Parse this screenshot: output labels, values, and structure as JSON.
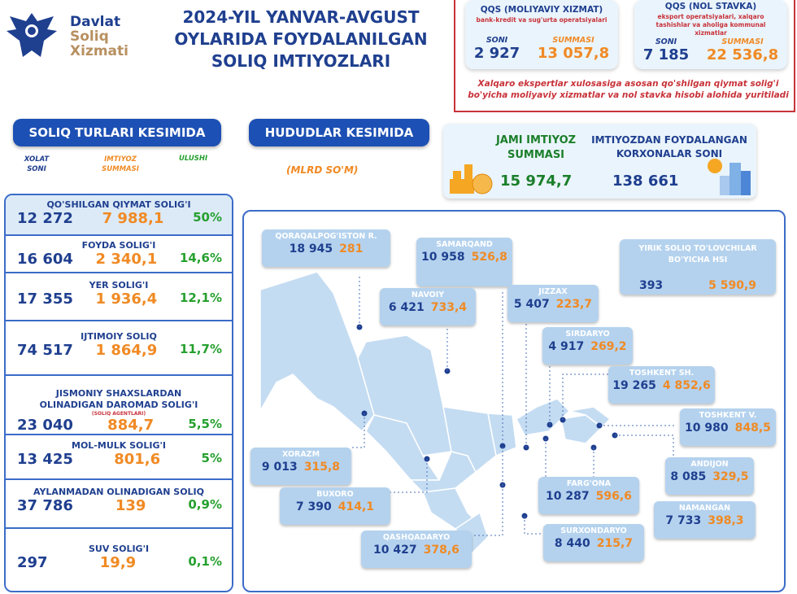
{
  "logo": {
    "line1": "Davlat",
    "line2": "Soliq",
    "line3": "Xizmati"
  },
  "title": "2024-YIL YANVAR-AVGUST OYLARIDA FOYDALANILGAN SOLIQ IMTIYOZLARI",
  "qqs_moliyaviy": {
    "title": "QQS (MOLIYAVIY XIZMAT)",
    "subtitle": "bank-kredit va sug'urta operatsiyalari",
    "soni_label": "SONI",
    "summasi_label": "SUMMASI",
    "soni": "2 927",
    "summasi": "13 057,8"
  },
  "qqs_nol": {
    "title": "QQS (NOL STAVKA)",
    "subtitle": "eksport operatsiyalari, xalqaro tashishlar va aholiga kommunal xizmatlar",
    "soni_label": "SONI",
    "summasi_label": "SUMMASI",
    "soni": "7 185",
    "summasi": "22 536,8"
  },
  "note": "Xalqaro ekspertlar xulosasiga asosan qo'shilgan qiymat solig'i bo'yicha moliyaviy xizmatlar va nol stavka hisobi alohida yuritiladi",
  "section_taxes": "SOLIQ TURLARI KESIMIDA",
  "section_regions": "HUDUDLAR KESIMIDA",
  "unit": "(MLRD SO'M)",
  "col_headers": {
    "count": "XOLAT SONI",
    "sum": "IMTIYOZ SUMMASI",
    "share": "ULUSHI"
  },
  "totals": {
    "sum_label": "JAMI IMTIYOZ SUMMASI",
    "sum": "15 974,7",
    "count_label": "IMTIYOZDAN FOYDALANGAN KORXONALAR SONI",
    "count": "138 661"
  },
  "taxes": [
    {
      "name": "QO'SHILGAN QIYMAT SOLIG'I",
      "count": "12 272",
      "sum": "7 988,1",
      "share": "50%"
    },
    {
      "name": "FOYDA SOLIG'I",
      "count": "16 604",
      "sum": "2 340,1",
      "share": "14,6%"
    },
    {
      "name": "YER SOLIG'I",
      "count": "17 355",
      "sum": "1 936,4",
      "share": "12,1%"
    },
    {
      "name": "IJTIMOIY SOLIQ",
      "count": "74 517",
      "sum": "1 864,9",
      "share": "11,7%"
    },
    {
      "name": "JISMONIY SHAXSLARDAN OLINADIGAN DAROMAD SOLIG'I",
      "note": "(SOLIQ AGENTLARI)",
      "count": "23 040",
      "sum": "884,7",
      "share": "5,5%"
    },
    {
      "name": "MOL-MULK SOLIG'I",
      "count": "13 425",
      "sum": "801,6",
      "share": "5%"
    },
    {
      "name": "AYLANMADAN OLINADIGAN SOLIQ",
      "count": "37 786",
      "sum": "139",
      "share": "0,9%"
    },
    {
      "name": "SUV SOLIG'I",
      "count": "297",
      "sum": "19,9",
      "share": "0,1%"
    }
  ],
  "regions": [
    {
      "name": "QORAQALPOG'ISTON R.",
      "count": "18 945",
      "sum": "281"
    },
    {
      "name": "SAMARQAND",
      "count": "10 958",
      "sum": "526,8"
    },
    {
      "name": "NAVOIY",
      "count": "6 421",
      "sum": "733,4"
    },
    {
      "name": "JIZZAX",
      "count": "5 407",
      "sum": "223,7"
    },
    {
      "name": "SIRDARYO",
      "count": "4 917",
      "sum": "269,2"
    },
    {
      "name": "TOSHKENT SH.",
      "count": "19 265",
      "sum": "4 852,6"
    },
    {
      "name": "TOSHKENT V.",
      "count": "10 980",
      "sum": "848,5"
    },
    {
      "name": "XORAZM",
      "count": "9 013",
      "sum": "315,8"
    },
    {
      "name": "ANDIJON",
      "count": "8 085",
      "sum": "329,5"
    },
    {
      "name": "BUXORO",
      "count": "7 390",
      "sum": "414,1"
    },
    {
      "name": "FARG'ONA",
      "count": "10 287",
      "sum": "596,6"
    },
    {
      "name": "NAMANGAN",
      "count": "7 733",
      "sum": "398,3"
    },
    {
      "name": "QASHQADARYO",
      "count": "10 427",
      "sum": "378,6"
    },
    {
      "name": "SURXONDARYO",
      "count": "8 440",
      "sum": "215,7"
    }
  ],
  "large_taxpayers": {
    "name": "YIRIK SOLIQ TO'LOVCHILAR BO'YICHA HSI",
    "count": "393",
    "sum": "5 590,9"
  }
}
